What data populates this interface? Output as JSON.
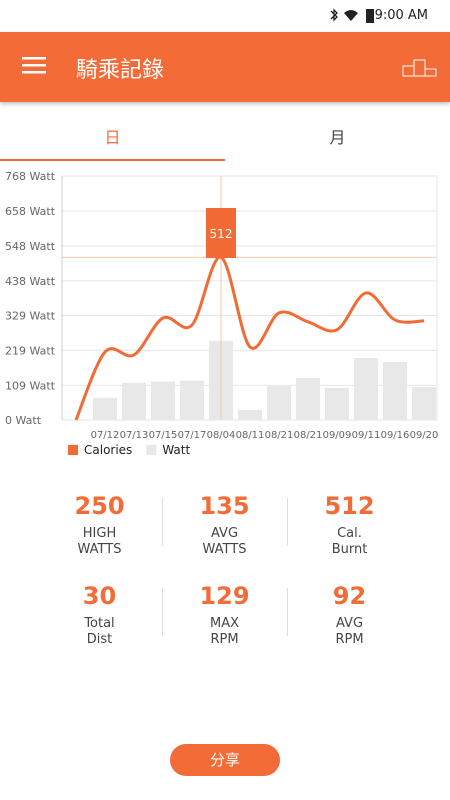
{
  "status_bar": {
    "time": "9:00 AM"
  },
  "app_bar": {
    "title": "騎乘記錄"
  },
  "tabs": [
    "日",
    "月"
  ],
  "chart_data": {
    "type": "bar-line",
    "categories": [
      null,
      "07/12",
      "07/13",
      "07/15",
      "07/17",
      "08/04",
      "08/11",
      "08/21",
      "08/21",
      "09/09",
      "09/11",
      "09/16",
      "09/20"
    ],
    "series": [
      {
        "name": "Calories",
        "color": "#f26a35",
        "kind": "line",
        "values": [
          0,
          214,
          205,
          321,
          299,
          512,
          230,
          337,
          309,
          284,
          400,
          315,
          312
        ]
      },
      {
        "name": "Watt",
        "color": "#e8e8e8",
        "kind": "bar",
        "values": [
          null,
          70,
          117,
          121,
          124,
          249,
          32,
          107,
          132,
          101,
          195,
          183,
          104
        ]
      }
    ],
    "highlight": {
      "series": 0,
      "index": 5
    },
    "ylim": [
      0,
      768
    ],
    "yticks": [
      {
        "value": 0,
        "label": "0 Watt"
      },
      {
        "value": 109,
        "label": "109 Watt"
      },
      {
        "value": 219,
        "label": "219 Watt"
      },
      {
        "value": 329,
        "label": "329 Watt"
      },
      {
        "value": 438,
        "label": "438 Watt"
      },
      {
        "value": 548,
        "label": "548 Watt"
      },
      {
        "value": 658,
        "label": "658 Watt"
      },
      {
        "value": 768,
        "label": "768 Watt"
      }
    ],
    "grid": true
  },
  "stats": [
    {
      "value": "250",
      "label": [
        "HIGH",
        "WATTS"
      ]
    },
    {
      "value": "135",
      "label": [
        "AVG",
        "WATTS"
      ]
    },
    {
      "value": "512",
      "label": [
        "Cal.",
        "Burnt"
      ]
    },
    {
      "value": "30",
      "label": [
        "Total",
        "Dist"
      ]
    },
    {
      "value": "129",
      "label": [
        "MAX",
        "RPM"
      ]
    },
    {
      "value": "92",
      "label": [
        "AVG",
        "RPM"
      ]
    }
  ],
  "share_button": "分享"
}
